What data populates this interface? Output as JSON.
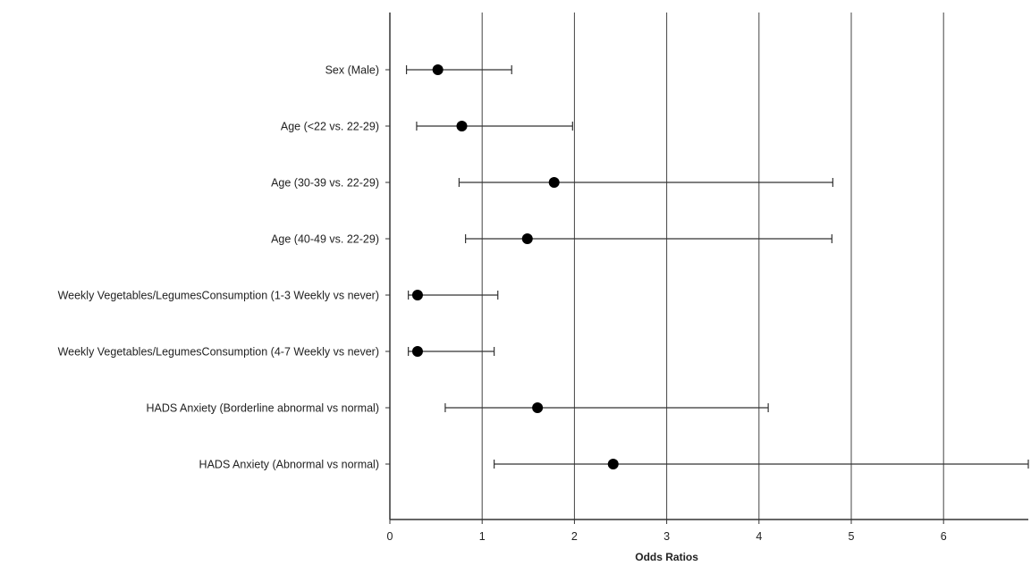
{
  "chart_data": {
    "type": "forest",
    "xlabel": "Odds Ratios",
    "xlim": [
      0,
      7
    ],
    "xticks": [
      "0",
      "1",
      "2",
      "3",
      "4",
      "5",
      "6"
    ],
    "grid": "vertical",
    "marker_color": "#000000",
    "line_color": "#333333",
    "rows": [
      {
        "label": "Sex (Male)",
        "or": 0.52,
        "ci_low": 0.18,
        "ci_high": 1.32
      },
      {
        "label": "Age (<22 vs. 22-29)",
        "or": 0.78,
        "ci_low": 0.29,
        "ci_high": 1.98
      },
      {
        "label": "Age (30-39 vs. 22-29)",
        "or": 1.78,
        "ci_low": 0.75,
        "ci_high": 4.8
      },
      {
        "label": "Age (40-49 vs. 22-29)",
        "or": 1.49,
        "ci_low": 0.82,
        "ci_high": 4.79
      },
      {
        "label": "Weekly Vegetables/LegumesConsumption (1-3 Weekly vs never)",
        "or": 0.3,
        "ci_low": 0.2,
        "ci_high": 1.17
      },
      {
        "label": "Weekly Vegetables/LegumesConsumption (4-7 Weekly vs never)",
        "or": 0.3,
        "ci_low": 0.2,
        "ci_high": 1.13
      },
      {
        "label": "HADS Anxiety (Borderline abnormal vs normal)",
        "or": 1.6,
        "ci_low": 0.6,
        "ci_high": 4.1
      },
      {
        "label": "HADS Anxiety (Abnormal vs normal)",
        "or": 2.42,
        "ci_low": 1.13,
        "ci_high": 6.95
      }
    ]
  }
}
